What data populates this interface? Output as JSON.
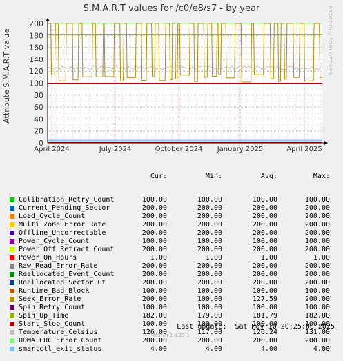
{
  "title": "S.M.A.R.T values for /c0/e8/s7 - by year",
  "watermark": "RRDTOOL / TOBI OETIKER",
  "footer": {
    "last_update": "Last update:  Sat May 10 20:25:00 2025",
    "munin": "Munin 2.0.33-1"
  },
  "legend_headers": {
    "cur": "Cur:",
    "min": "Min:",
    "avg": "Avg:",
    "max": "Max:"
  },
  "chart_data": {
    "type": "line",
    "title": "S.M.A.R.T values for /c0/e8/s7 - by year",
    "ylabel": "Attribute S.M.A.R.T value",
    "ylim": [
      0,
      200
    ],
    "yticks": [
      0,
      20,
      40,
      60,
      80,
      100,
      120,
      140,
      160,
      180,
      200
    ],
    "xticks": [
      "April 2024",
      "July 2024",
      "October 2024",
      "January 2025",
      "April 2025"
    ],
    "grid": true,
    "series": [
      {
        "name": "Calibration_Retry_Count",
        "color": "#00cc00",
        "cur": "100.00",
        "min": "100.00",
        "avg": "100.00",
        "max": "100.00"
      },
      {
        "name": "Current_Pending_Sector",
        "color": "#0066b3",
        "cur": "200.00",
        "min": "200.00",
        "avg": "200.00",
        "max": "200.00"
      },
      {
        "name": "Load_Cycle_Count",
        "color": "#ff8000",
        "cur": "200.00",
        "min": "200.00",
        "avg": "200.00",
        "max": "200.00"
      },
      {
        "name": "Multi_Zone_Error_Rate",
        "color": "#ffcc00",
        "cur": "200.00",
        "min": "200.00",
        "avg": "200.00",
        "max": "200.00"
      },
      {
        "name": "Offline_Uncorrectable",
        "color": "#330099",
        "cur": "200.00",
        "min": "200.00",
        "avg": "200.00",
        "max": "200.00"
      },
      {
        "name": "Power_Cycle_Count",
        "color": "#990099",
        "cur": "100.00",
        "min": "100.00",
        "avg": "100.00",
        "max": "100.00"
      },
      {
        "name": "Power_Off_Retract_Count",
        "color": "#ccff00",
        "cur": "200.00",
        "min": "200.00",
        "avg": "200.00",
        "max": "200.00"
      },
      {
        "name": "Power_On_Hours",
        "color": "#ff0000",
        "cur": "1.00",
        "min": "1.00",
        "avg": "1.00",
        "max": "1.00"
      },
      {
        "name": "Raw_Read_Error_Rate",
        "color": "#808080",
        "cur": "200.00",
        "min": "200.00",
        "avg": "200.00",
        "max": "200.00"
      },
      {
        "name": "Reallocated_Event_Count",
        "color": "#008f00",
        "cur": "200.00",
        "min": "200.00",
        "avg": "200.00",
        "max": "200.00"
      },
      {
        "name": "Reallocated_Sector_Ct",
        "color": "#00487d",
        "cur": "200.00",
        "min": "200.00",
        "avg": "200.00",
        "max": "200.00"
      },
      {
        "name": "Runtime_Bad_Block",
        "color": "#b35a00",
        "cur": "100.00",
        "min": "100.00",
        "avg": "100.00",
        "max": "100.00"
      },
      {
        "name": "Seek_Error_Rate",
        "color": "#b38f00",
        "cur": "200.00",
        "min": "100.00",
        "avg": "127.59",
        "max": "200.00"
      },
      {
        "name": "Spin_Retry_Count",
        "color": "#6b006b",
        "cur": "100.00",
        "min": "100.00",
        "avg": "100.00",
        "max": "100.00"
      },
      {
        "name": "Spin_Up_Time",
        "color": "#8fb300",
        "cur": "182.00",
        "min": "179.00",
        "avg": "181.79",
        "max": "182.00"
      },
      {
        "name": "Start_Stop_Count",
        "color": "#b30000",
        "cur": "100.00",
        "min": "100.00",
        "avg": "100.00",
        "max": "100.00"
      },
      {
        "name": "Temperature_Celsius",
        "color": "#bebebe",
        "cur": "126.00",
        "min": "117.00",
        "avg": "126.24",
        "max": "131.00"
      },
      {
        "name": "UDMA_CRC_Error_Count",
        "color": "#80ff80",
        "cur": "200.00",
        "min": "200.00",
        "avg": "200.00",
        "max": "200.00"
      },
      {
        "name": "smartctl_exit_status",
        "color": "#80c9ff",
        "cur": "4.00",
        "min": "4.00",
        "avg": "4.00",
        "max": "4.00"
      }
    ]
  }
}
